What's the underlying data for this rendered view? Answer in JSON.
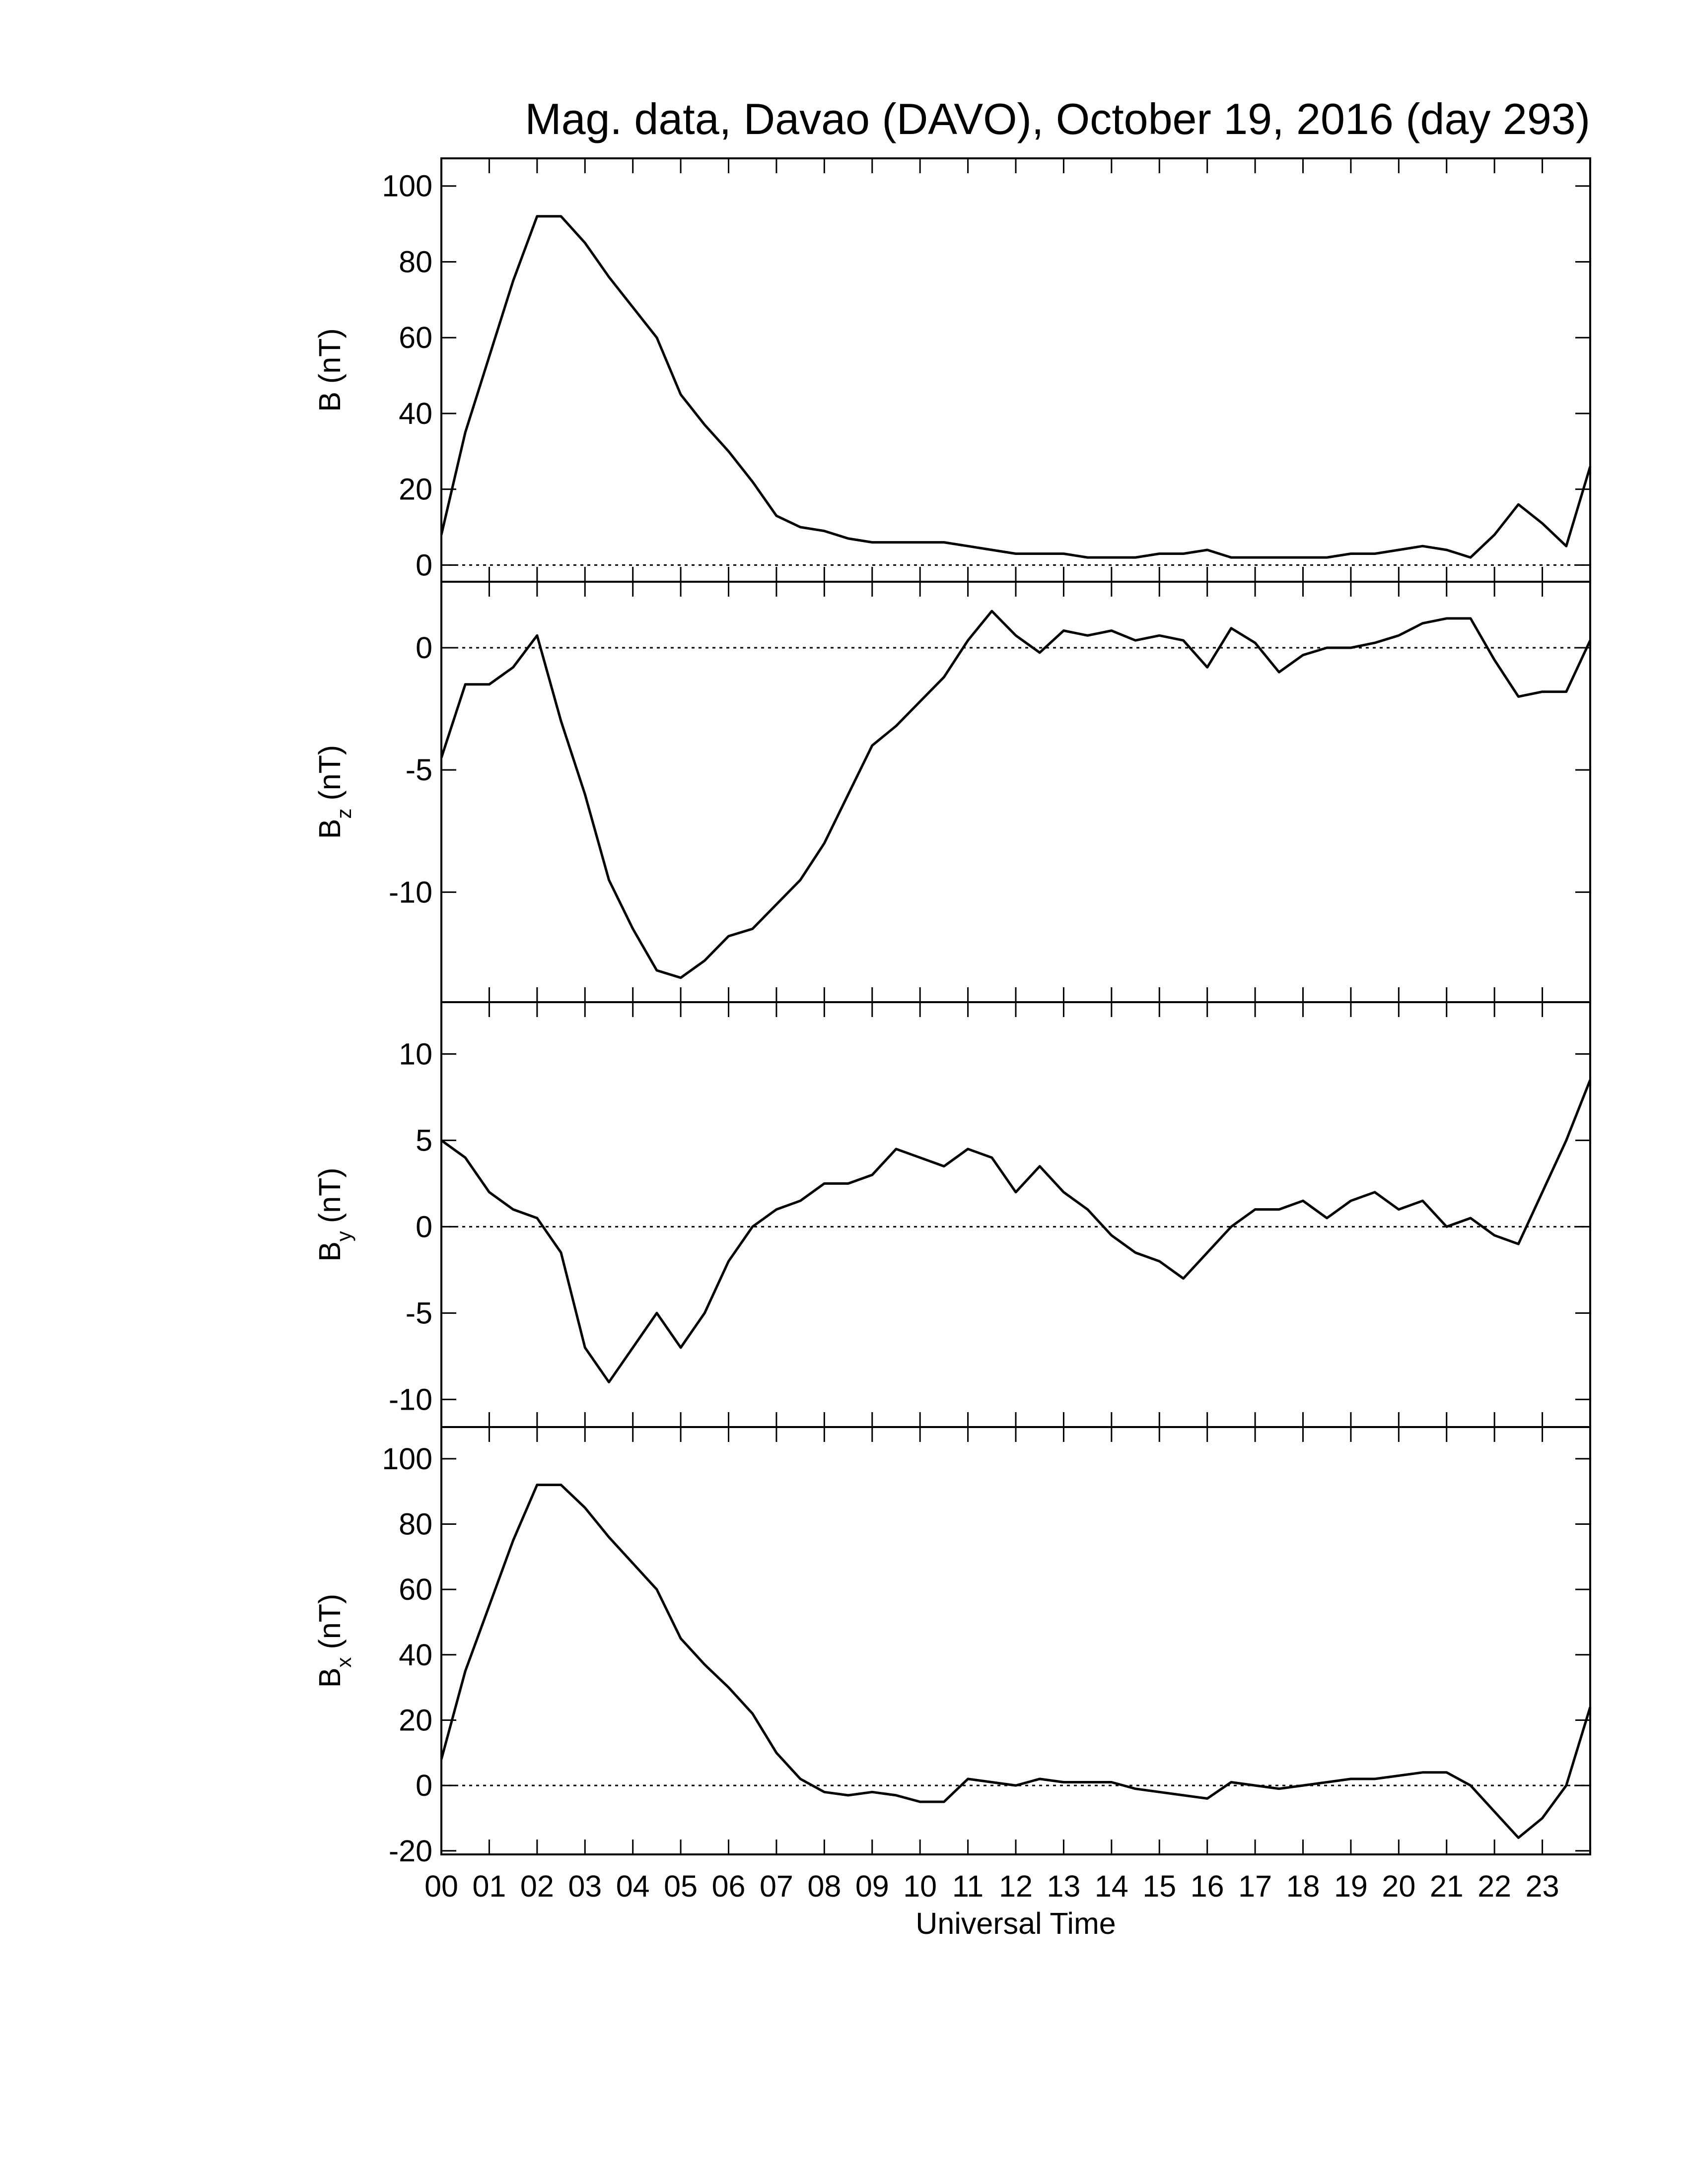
{
  "chart_data": [
    {
      "type": "line",
      "title": "Mag. data, Davao (DAVO), October 19, 2016 (day 293)",
      "ylabel": "B",
      "ylabel_unit": "(nT)",
      "color": "#000000",
      "x": [
        0,
        0.5,
        1,
        1.5,
        2,
        2.5,
        3,
        3.5,
        4,
        4.5,
        5,
        5.5,
        6,
        6.5,
        7,
        7.5,
        8,
        8.5,
        9,
        9.5,
        10,
        10.5,
        11,
        11.5,
        12,
        12.5,
        13,
        13.5,
        14,
        14.5,
        15,
        15.5,
        16,
        16.5,
        17,
        17.5,
        18,
        18.5,
        19,
        19.5,
        20,
        20.5,
        21,
        21.5,
        22,
        22.5,
        23,
        23.5,
        24
      ],
      "values": [
        8,
        35,
        55,
        75,
        92,
        92,
        85,
        76,
        68,
        60,
        45,
        37,
        30,
        22,
        13,
        10,
        9,
        7,
        6,
        6,
        6,
        6,
        5,
        4,
        3,
        3,
        3,
        2,
        2,
        2,
        3,
        3,
        4,
        2,
        2,
        2,
        2,
        2,
        3,
        3,
        4,
        5,
        4,
        2,
        8,
        16,
        11,
        5,
        26
      ],
      "xlim": [
        0,
        24
      ],
      "ylim": [
        -4.4,
        107.3
      ],
      "yticks": [
        0,
        20,
        40,
        60,
        80,
        100
      ],
      "reference_line": 0
    },
    {
      "type": "line",
      "ylabel": "B",
      "ylabel_sub": "z",
      "ylabel_unit": "(nT)",
      "color": "#000000",
      "x": [
        0,
        0.5,
        1,
        1.5,
        2,
        2.5,
        3,
        3.5,
        4,
        4.5,
        5,
        5.5,
        6,
        6.5,
        7,
        7.5,
        8,
        8.5,
        9,
        9.5,
        10,
        10.5,
        11,
        11.5,
        12,
        12.5,
        13,
        13.5,
        14,
        14.5,
        15,
        15.5,
        16,
        16.5,
        17,
        17.5,
        18,
        18.5,
        19,
        19.5,
        20,
        20.5,
        21,
        21.5,
        22,
        22.5,
        23,
        23.5,
        24
      ],
      "values": [
        -4.5,
        -1.5,
        -1.5,
        -0.8,
        0.5,
        -3,
        -6,
        -9.5,
        -11.5,
        -13.2,
        -13.5,
        -12.8,
        -11.8,
        -11.5,
        -10.5,
        -9.5,
        -8,
        -6,
        -4,
        -3.2,
        -2.2,
        -1.2,
        0.3,
        1.5,
        0.5,
        -0.2,
        0.7,
        0.5,
        0.7,
        0.3,
        0.5,
        0.3,
        -0.8,
        0.8,
        0.2,
        -1,
        -0.3,
        0,
        0,
        0.2,
        0.5,
        1,
        1.2,
        1.2,
        -0.5,
        -2,
        -1.8,
        -1.8,
        0.3
      ],
      "xlim": [
        0,
        24
      ],
      "ylim": [
        -14.5,
        2.7
      ],
      "yticks": [
        -10,
        -5,
        0
      ],
      "reference_line": 0
    },
    {
      "type": "line",
      "ylabel": "B",
      "ylabel_sub": "y",
      "ylabel_unit": "(nT)",
      "color": "#000000",
      "x": [
        0,
        0.5,
        1,
        1.5,
        2,
        2.5,
        3,
        3.5,
        4,
        4.5,
        5,
        5.5,
        6,
        6.5,
        7,
        7.5,
        8,
        8.5,
        9,
        9.5,
        10,
        10.5,
        11,
        11.5,
        12,
        12.5,
        13,
        13.5,
        14,
        14.5,
        15,
        15.5,
        16,
        16.5,
        17,
        17.5,
        18,
        18.5,
        19,
        19.5,
        20,
        20.5,
        21,
        21.5,
        22,
        22.5,
        23,
        23.5,
        24
      ],
      "values": [
        5,
        4,
        2,
        1,
        0.5,
        -1.5,
        -7,
        -9,
        -7,
        -5,
        -7,
        -5,
        -2,
        0,
        1,
        1.5,
        2.5,
        2.5,
        3,
        4.5,
        4,
        3.5,
        4.5,
        4,
        2,
        3.5,
        2,
        1,
        -0.5,
        -1.5,
        -2,
        -3,
        -1.5,
        0,
        1,
        1,
        1.5,
        0.5,
        1.5,
        2,
        1,
        1.5,
        0,
        0.5,
        -0.5,
        -1,
        2,
        5,
        8.5
      ],
      "xlim": [
        0,
        24
      ],
      "ylim": [
        -11.6,
        13.0
      ],
      "yticks": [
        -10,
        -5,
        0,
        5,
        10
      ],
      "reference_line": 0
    },
    {
      "type": "line",
      "ylabel": "B",
      "ylabel_sub": "x",
      "ylabel_unit": "(nT)",
      "xlabel": "Universal Time",
      "color": "#000000",
      "x": [
        0,
        0.5,
        1,
        1.5,
        2,
        2.5,
        3,
        3.5,
        4,
        4.5,
        5,
        5.5,
        6,
        6.5,
        7,
        7.5,
        8,
        8.5,
        9,
        9.5,
        10,
        10.5,
        11,
        11.5,
        12,
        12.5,
        13,
        13.5,
        14,
        14.5,
        15,
        15.5,
        16,
        16.5,
        17,
        17.5,
        18,
        18.5,
        19,
        19.5,
        20,
        20.5,
        21,
        21.5,
        22,
        22.5,
        23,
        23.5,
        24
      ],
      "values": [
        8,
        35,
        55,
        75,
        92,
        92,
        85,
        76,
        68,
        60,
        45,
        37,
        30,
        22,
        10,
        2,
        -2,
        -3,
        -2,
        -3,
        -5,
        -5,
        2,
        1,
        0,
        2,
        1,
        1,
        1,
        -1,
        -2,
        -3,
        -4,
        1,
        0,
        -1,
        0,
        1,
        2,
        2,
        3,
        4,
        4,
        0,
        -8,
        -16,
        -10,
        0,
        24
      ],
      "xlim": [
        0,
        24
      ],
      "ylim": [
        -21.1,
        109.7
      ],
      "yticks": [
        -20,
        0,
        20,
        40,
        60,
        80,
        100
      ],
      "reference_line": 0,
      "xticks": [
        {
          "value": 0,
          "label": "00"
        },
        {
          "value": 1,
          "label": "01"
        },
        {
          "value": 2,
          "label": "02"
        },
        {
          "value": 3,
          "label": "03"
        },
        {
          "value": 4,
          "label": "04"
        },
        {
          "value": 5,
          "label": "05"
        },
        {
          "value": 6,
          "label": "06"
        },
        {
          "value": 7,
          "label": "07"
        },
        {
          "value": 8,
          "label": "08"
        },
        {
          "value": 9,
          "label": "09"
        },
        {
          "value": 10,
          "label": "10"
        },
        {
          "value": 11,
          "label": "11"
        },
        {
          "value": 12,
          "label": "12"
        },
        {
          "value": 13,
          "label": "13"
        },
        {
          "value": 14,
          "label": "14"
        },
        {
          "value": 15,
          "label": "15"
        },
        {
          "value": 16,
          "label": "16"
        },
        {
          "value": 17,
          "label": "17"
        },
        {
          "value": 18,
          "label": "18"
        },
        {
          "value": 19,
          "label": "19"
        },
        {
          "value": 20,
          "label": "20"
        },
        {
          "value": 21,
          "label": "21"
        },
        {
          "value": 22,
          "label": "22"
        },
        {
          "value": 23,
          "label": "23"
        }
      ]
    }
  ]
}
